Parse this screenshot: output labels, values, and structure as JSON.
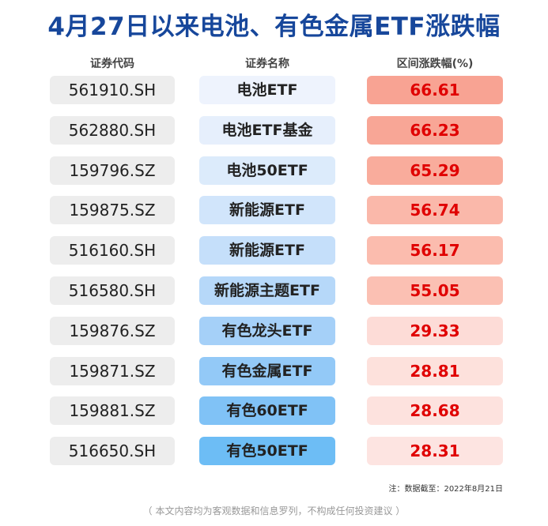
{
  "title": "4月27日以来电池、有色金属ETF涨跌幅",
  "columns": {
    "code": "证券代码",
    "name": "证券名称",
    "change": "区间涨跌幅(%)"
  },
  "chart_data": {
    "type": "table",
    "title": "4月27日以来电池、有色金属ETF涨跌幅",
    "columns": [
      "证券代码",
      "证券名称",
      "区间涨跌幅(%)"
    ],
    "rows": [
      {
        "code": "561910.SH",
        "name": "电池ETF",
        "value": "66.61"
      },
      {
        "code": "562880.SH",
        "name": "电池ETF基金",
        "value": "66.23"
      },
      {
        "code": "159796.SZ",
        "name": "电池50ETF",
        "value": "65.29"
      },
      {
        "code": "159875.SZ",
        "name": "新能源ETF",
        "value": "56.74"
      },
      {
        "code": "516160.SH",
        "name": "新能源ETF",
        "value": "56.17"
      },
      {
        "code": "516580.SH",
        "name": "新能源主题ETF",
        "value": "55.05"
      },
      {
        "code": "159876.SZ",
        "name": "有色龙头ETF",
        "value": "29.33"
      },
      {
        "code": "159871.SZ",
        "name": "有色金属ETF",
        "value": "28.81"
      },
      {
        "code": "159881.SZ",
        "name": "有色60ETF",
        "value": "28.68"
      },
      {
        "code": "516650.SH",
        "name": "有色50ETF",
        "value": "28.31"
      }
    ]
  },
  "note": "注：数据截至：2022年8月21日",
  "disclaimer": "（ 本文内容均为客观数据和信息罗列，不构成任何投资建议 ）",
  "colors": {
    "title": "#17479b",
    "value_text": "#e00000",
    "code_bg": "#ededed",
    "name_bg_light": "#eef3fd",
    "name_bg_dark": "#6dbdf5",
    "value_bg_strong": "#f8a393",
    "value_bg_light": "#fde4e1"
  }
}
